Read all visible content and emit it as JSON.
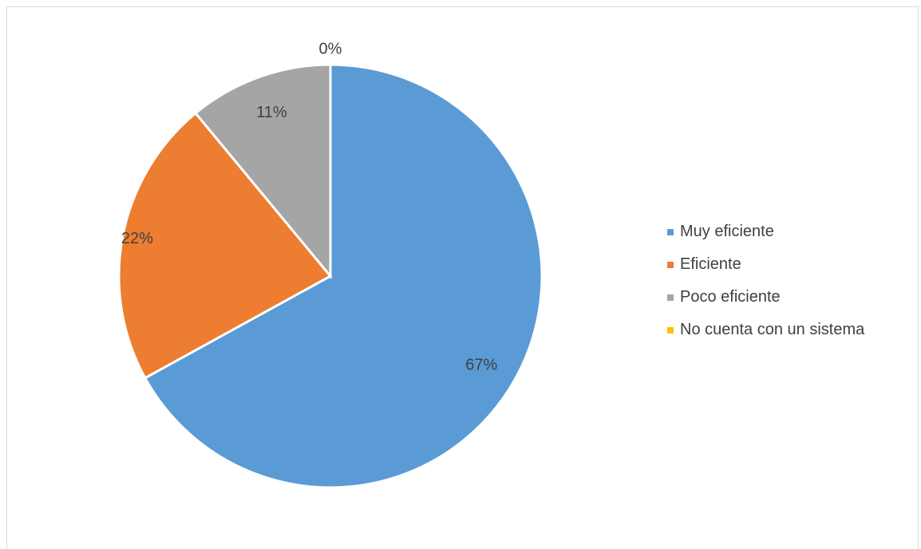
{
  "chart_data": {
    "type": "pie",
    "categories": [
      "Muy eficiente",
      "Eficiente",
      "Poco eficiente",
      "No cuenta con un sistema"
    ],
    "values": [
      67,
      22,
      11,
      0
    ],
    "labels": [
      "67%",
      "22%",
      "11%",
      "0%"
    ],
    "colors": [
      "#5b9bd5",
      "#ed7d31",
      "#a5a5a5",
      "#ffc000"
    ],
    "legend_position": "right"
  }
}
